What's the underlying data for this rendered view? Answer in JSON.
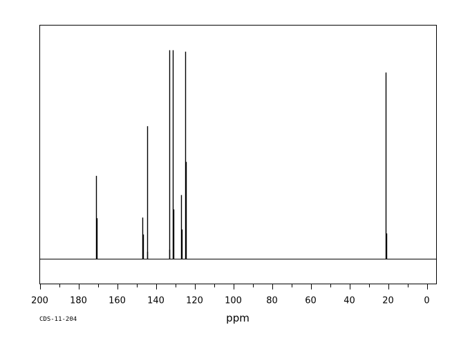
{
  "chart_data": {
    "type": "line",
    "title": "",
    "xlabel": "ppm",
    "ylabel": "",
    "xlim": [
      200,
      -5
    ],
    "x_reversed": true,
    "ylim": [
      -12,
      112
    ],
    "x_ticks": [
      200,
      180,
      160,
      140,
      120,
      100,
      80,
      60,
      40,
      20,
      0
    ],
    "x_tick_labels": [
      "200",
      "180",
      "160",
      "140",
      "120",
      "100",
      "80",
      "60",
      "40",
      "20",
      "0"
    ],
    "grid": false,
    "legend": "none",
    "line_color": "#000000",
    "baseline": 0,
    "series": [
      {
        "peaks": [
          {
            "ppm": 170.9,
            "intensity": 39.8
          },
          {
            "ppm": 170.7,
            "intensity": 19.5
          },
          {
            "ppm": 146.8,
            "intensity": 19.8
          },
          {
            "ppm": 146.6,
            "intensity": 11.7
          },
          {
            "ppm": 144.5,
            "intensity": 63.6
          },
          {
            "ppm": 144.3,
            "intensity": 3.4
          },
          {
            "ppm": 133.2,
            "intensity": 100
          },
          {
            "ppm": 132.9,
            "intensity": 4.4
          },
          {
            "ppm": 131.2,
            "intensity": 100
          },
          {
            "ppm": 130.9,
            "intensity": 23.7
          },
          {
            "ppm": 126.8,
            "intensity": 30.6
          },
          {
            "ppm": 126.5,
            "intensity": 14.1
          },
          {
            "ppm": 124.8,
            "intensity": 99.3
          },
          {
            "ppm": 124.4,
            "intensity": 46.5
          },
          {
            "ppm": 21.2,
            "intensity": 89.3
          },
          {
            "ppm": 21.0,
            "intensity": 12.2
          }
        ]
      }
    ]
  },
  "footer": {
    "code": "CDS-11-204"
  }
}
